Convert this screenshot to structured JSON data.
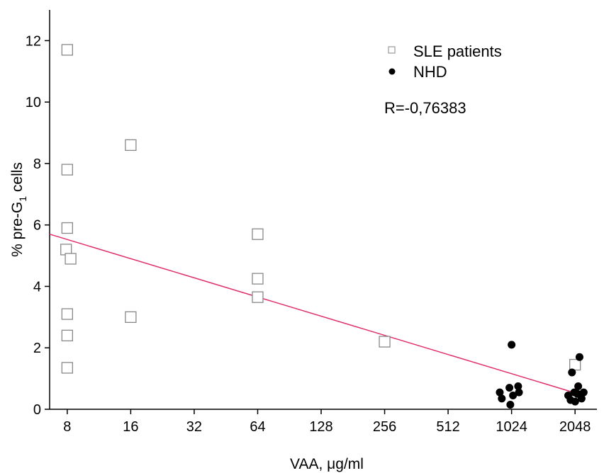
{
  "chart_data": {
    "type": "scatter",
    "xlabel_prefix": "VAA, ",
    "xlabel_unit": "μg/ml",
    "ylabel_prefix": "% pre-G",
    "ylabel_sub": "1",
    "ylabel_suffix": " cells",
    "x_scale": "log2",
    "xlim": [
      6.6,
      2600
    ],
    "ylim": [
      0,
      13
    ],
    "x_ticks": [
      8,
      16,
      32,
      64,
      128,
      256,
      512,
      1024,
      2048
    ],
    "x_tick_labels": [
      "8",
      "16",
      "32",
      "64",
      "128",
      "256",
      "512",
      "1024",
      "2048"
    ],
    "y_ticks": [
      0,
      2,
      4,
      6,
      8,
      10,
      12
    ],
    "y_tick_labels": [
      "0",
      "2",
      "4",
      "6",
      "8",
      "10",
      "12"
    ],
    "grid": false,
    "legend_position": "top-right",
    "annotation": "R=-0,76383",
    "series": [
      {
        "name": "SLE patients",
        "marker": "open-square",
        "color": "#888888",
        "points": [
          {
            "x": 8,
            "y": 11.7
          },
          {
            "x": 8,
            "y": 7.8
          },
          {
            "x": 8,
            "y": 5.9
          },
          {
            "x": 7.9,
            "y": 5.2
          },
          {
            "x": 8.3,
            "y": 4.9
          },
          {
            "x": 8,
            "y": 3.1
          },
          {
            "x": 8,
            "y": 2.4
          },
          {
            "x": 8,
            "y": 1.35
          },
          {
            "x": 16,
            "y": 8.6
          },
          {
            "x": 16,
            "y": 3.0
          },
          {
            "x": 64,
            "y": 5.7
          },
          {
            "x": 64,
            "y": 4.25
          },
          {
            "x": 64,
            "y": 3.65
          },
          {
            "x": 256,
            "y": 2.2
          },
          {
            "x": 2048,
            "y": 1.45
          }
        ]
      },
      {
        "name": "NHD",
        "marker": "filled-circle",
        "color": "#000000",
        "points": [
          {
            "x": 1024,
            "y": 2.1
          },
          {
            "x": 900,
            "y": 0.55
          },
          {
            "x": 920,
            "y": 0.35
          },
          {
            "x": 1000,
            "y": 0.7
          },
          {
            "x": 1010,
            "y": 0.15
          },
          {
            "x": 1040,
            "y": 0.45
          },
          {
            "x": 1100,
            "y": 0.75
          },
          {
            "x": 1110,
            "y": 0.55
          },
          {
            "x": 2150,
            "y": 1.7
          },
          {
            "x": 1980,
            "y": 1.2
          },
          {
            "x": 1900,
            "y": 0.45
          },
          {
            "x": 1950,
            "y": 0.3
          },
          {
            "x": 2050,
            "y": 0.25
          },
          {
            "x": 2100,
            "y": 0.5
          },
          {
            "x": 2120,
            "y": 0.75
          },
          {
            "x": 2200,
            "y": 0.35
          },
          {
            "x": 2250,
            "y": 0.55
          },
          {
            "x": 2030,
            "y": 0.55
          }
        ]
      }
    ],
    "regression_line": {
      "color": "#e0306a",
      "points": [
        {
          "x": 6.6,
          "y": 5.7
        },
        {
          "x": 2200,
          "y": 0.47
        }
      ]
    }
  }
}
